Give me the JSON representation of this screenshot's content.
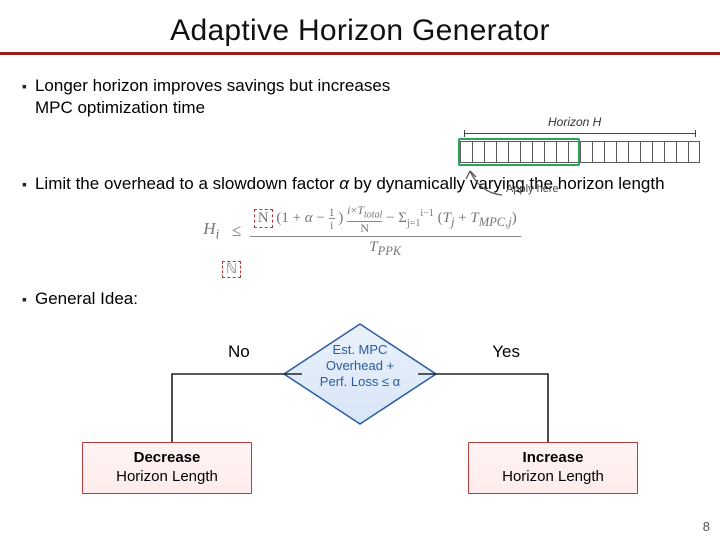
{
  "title": "Adaptive Horizon Generator",
  "page_number": "8",
  "bullets": {
    "b1": "Longer horizon improves savings but increases MPC optimization time",
    "b2_pre": "Limit the overhead to a slowdown factor ",
    "b2_sym": "α",
    "b2_post": " by dynamically varying the horizon length",
    "b3": "General Idea:"
  },
  "horizon": {
    "label": "Horizon H",
    "apply": "Apply here",
    "cell_count": 20,
    "window_cells": 10,
    "colors": {
      "border": "#5a5a5a",
      "window": "#2aa455"
    }
  },
  "formula": {
    "lhs": "H_i",
    "op": "≤",
    "num_a": "N (1 + α − ",
    "sf1_n": "1",
    "sf1_d": "i",
    "num_b": ") ",
    "sf2_n": "i × T_total",
    "sf2_d": "N",
    "num_c": " − Σ_{j=1}^{i−1} (T_j + T_{MPC,j})",
    "den": "T_PPK",
    "den_small": "ℕ"
  },
  "flow": {
    "diamond_lines": [
      "Est. MPC",
      "Overhead +",
      "Perf. Loss ≤ α"
    ],
    "no": "No",
    "yes": "Yes",
    "decrease_l1": "Decrease",
    "decrease_l2": "Horizon Length",
    "increase_l1": "Increase",
    "increase_l2": "Horizon Length",
    "colors": {
      "diamond_stroke": "#2b5aa0",
      "diamond_fill_top": "#eaf1fb",
      "diamond_fill_bot": "#d7e5f7",
      "arrow": "#222222",
      "box_border": "#b83a3a"
    }
  },
  "rule_color": "#9a1d1d"
}
